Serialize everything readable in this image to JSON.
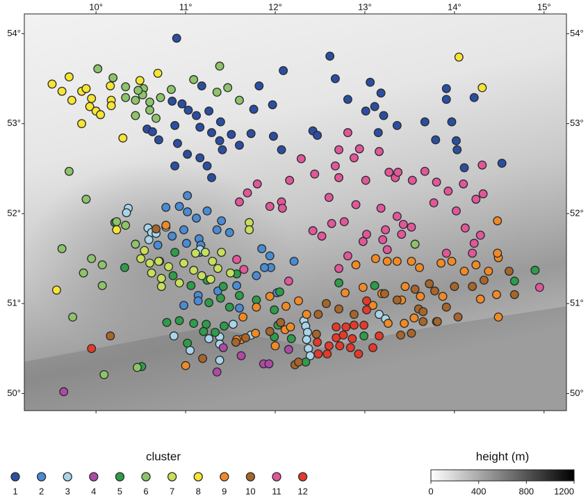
{
  "chart_data": {
    "type": "scatter",
    "xlim": [
      9.2,
      15.25
    ],
    "ylim": [
      49.81,
      54.22
    ],
    "xticks": [
      {
        "value": 10,
        "label": "10°"
      },
      {
        "value": 11,
        "label": "11°"
      },
      {
        "value": 12,
        "label": "12°"
      },
      {
        "value": 13,
        "label": "13°"
      },
      {
        "value": 14,
        "label": "14°"
      },
      {
        "value": 15,
        "label": "15°"
      }
    ],
    "yticks": [
      {
        "value": 50,
        "label": "50°"
      },
      {
        "value": 51,
        "label": "51°"
      },
      {
        "value": 52,
        "label": "52°"
      },
      {
        "value": 53,
        "label": "53°"
      },
      {
        "value": 54,
        "label": "54°"
      }
    ],
    "legend_title": "cluster",
    "series": [
      {
        "name": "1",
        "color": "#2b4ea0",
        "x": [
          10.9,
          12.61,
          12.09,
          12.67,
          13.06,
          11.18,
          11.82,
          13.18,
          13.91,
          13.91,
          14.22,
          12.81,
          10.85,
          10.96,
          11.03,
          11.12,
          11.26,
          11.39,
          11.76,
          11.97,
          13.01,
          13.11,
          13.21,
          13.67,
          13.97,
          13.36,
          10.57,
          10.63,
          10.7,
          10.88,
          11.16,
          11.29,
          11.38,
          11.51,
          11.73,
          11.98,
          12.42,
          12.47,
          13.15,
          13.79,
          14.02,
          14.03,
          10.91,
          11.02,
          11.16,
          11.24,
          11.29,
          11.6,
          12.07,
          14.11,
          14.53,
          10.88,
          11.41
        ],
        "y": [
          53.95,
          53.75,
          53.59,
          53.5,
          53.46,
          53.42,
          53.42,
          53.34,
          53.39,
          53.27,
          53.29,
          53.27,
          53.25,
          53.22,
          53.15,
          53.09,
          53.14,
          53.02,
          53.16,
          53.21,
          53.14,
          53.19,
          53.09,
          53.02,
          53.02,
          52.98,
          52.94,
          52.91,
          52.82,
          52.98,
          52.96,
          52.9,
          52.81,
          52.88,
          52.89,
          52.86,
          52.92,
          52.87,
          52.9,
          52.82,
          52.81,
          52.71,
          52.78,
          52.66,
          52.62,
          52.53,
          52.4,
          52.76,
          52.71,
          52.51,
          52.56,
          52.53,
          52.71
        ]
      },
      {
        "name": "2",
        "color": "#4a8bd3",
        "x": [
          10.78,
          10.93,
          11.02,
          11.02,
          11.12,
          11.24,
          11.4,
          10.98,
          10.85,
          10.69,
          11.01,
          11.15,
          11.17,
          11.35,
          11.49,
          11.85,
          11.94,
          11.95,
          11.88,
          12.21,
          11.79,
          11.14,
          11.14,
          10.98,
          11.36,
          11.57,
          11.6,
          12.02,
          10.71,
          11.16
        ],
        "y": [
          52.07,
          52.08,
          52.2,
          52.02,
          51.95,
          52.03,
          51.92,
          51.82,
          51.75,
          51.65,
          51.67,
          51.72,
          51.65,
          51.82,
          51.79,
          51.61,
          51.53,
          51.4,
          51.4,
          51.47,
          51.31,
          51.09,
          51.03,
          50.98,
          51.14,
          51.2,
          50.95,
          51.12,
          51.47,
          51.57
        ]
      },
      {
        "name": "3",
        "color": "#a8d5ea",
        "x": [
          10.36,
          10.34,
          10.58,
          10.62,
          10.59,
          10.67,
          10.78,
          11.16,
          10.87,
          11.05,
          11.26,
          11.38,
          11.38,
          11.38,
          11.53,
          11.73,
          12.32,
          12.34,
          12.36,
          12.35,
          12.37,
          12.39,
          13.16,
          13.23
        ],
        "y": [
          52.06,
          52.01,
          51.84,
          51.79,
          51.71,
          51.78,
          51.85,
          51.6,
          50.64,
          50.48,
          50.61,
          50.63,
          50.55,
          50.37,
          50.77,
          50.65,
          50.81,
          50.75,
          50.68,
          50.6,
          50.5,
          50.42,
          50.88,
          50.83
        ]
      },
      {
        "name": "4",
        "color": "#ad4aa6",
        "x": [
          9.64,
          11.42,
          11.62,
          11.87,
          11.93,
          11.35,
          12.15
        ],
        "y": [
          50.02,
          50.51,
          50.42,
          50.33,
          50.33,
          50.24,
          50.49
        ]
      },
      {
        "name": "5",
        "color": "#2e9c4a",
        "x": [
          10.21,
          10.32,
          10.86,
          10.88,
          11.06,
          11.24,
          11.42,
          11.57,
          11.39,
          11.26,
          11.49,
          11.6,
          10.79,
          10.93,
          11.09,
          11.23,
          11.33,
          11.43,
          11.02,
          11.2,
          11.79,
          11.99,
          12.03,
          11.99,
          12.18,
          12.05,
          12.71,
          13.11,
          12.99,
          10.51,
          12.34,
          14.9,
          14.67
        ],
        "y": [
          51.9,
          51.4,
          51.31,
          51.57,
          51.2,
          51.26,
          51.19,
          51.33,
          51.06,
          51.01,
          50.96,
          51.09,
          50.79,
          50.81,
          50.78,
          50.77,
          50.68,
          50.75,
          50.56,
          50.69,
          51.04,
          50.93,
          50.76,
          50.63,
          50.61,
          51.13,
          51.23,
          51.2,
          50.64,
          50.3,
          50.35,
          51.37,
          51.25
        ]
      },
      {
        "name": "6",
        "color": "#8cc46a",
        "x": [
          10.02,
          10.19,
          10.33,
          10.53,
          10.52,
          10.47,
          10.33,
          10.44,
          10.6,
          10.72,
          10.84,
          11.09,
          11.38,
          11.35,
          11.47,
          11.6,
          10.44,
          10.67,
          10.6,
          9.7,
          9.89,
          10.23,
          10.33,
          9.62,
          9.86,
          9.95,
          10.07,
          10.07,
          9.74,
          10.09,
          10.46,
          13.56,
          10.44
        ],
        "y": [
          53.61,
          53.51,
          53.41,
          53.39,
          53.32,
          53.37,
          53.29,
          53.26,
          53.24,
          53.29,
          53.38,
          53.49,
          53.64,
          53.35,
          53.4,
          53.26,
          53.09,
          53.06,
          53.15,
          52.47,
          52.16,
          51.91,
          51.87,
          51.61,
          51.34,
          51.5,
          51.43,
          51.2,
          50.85,
          50.21,
          50.29,
          51.66,
          51.66
        ]
      },
      {
        "name": "7",
        "color": "#c6df5c",
        "x": [
          10.54,
          10.5,
          10.7,
          10.62,
          10.73,
          10.81,
          10.73,
          10.93,
          10.98,
          11.09,
          11.18,
          11.11,
          11.22,
          11.3,
          11.36,
          11.28,
          11.4,
          11.5,
          11.71,
          11.71,
          10.6
        ],
        "y": [
          51.59,
          51.5,
          51.47,
          51.34,
          51.28,
          51.41,
          51.19,
          51.23,
          51.45,
          51.37,
          51.31,
          51.56,
          51.57,
          51.47,
          51.39,
          51.27,
          51.57,
          51.34,
          51.9,
          51.82,
          51.45
        ]
      },
      {
        "name": "8",
        "color": "#f6e532",
        "x": [
          9.51,
          9.62,
          9.7,
          9.73,
          9.84,
          9.89,
          9.95,
          9.93,
          10.0,
          10.05,
          10.17,
          10.16,
          10.17,
          9.84,
          10.3,
          10.49,
          10.69,
          10.23,
          9.56,
          14.05,
          14.31
        ],
        "y": [
          53.44,
          53.36,
          53.52,
          53.26,
          53.36,
          53.39,
          53.28,
          53.19,
          53.14,
          53.1,
          53.26,
          53.42,
          53.2,
          53.0,
          52.84,
          53.48,
          53.56,
          51.82,
          51.15,
          53.74,
          53.4
        ]
      },
      {
        "name": "9",
        "color": "#f08a26",
        "x": [
          10.78,
          13.12,
          13.25,
          13.36,
          13.52,
          12.9,
          13.85,
          13.97,
          14.24,
          14.49,
          14.48,
          14.48,
          14.11,
          14.38,
          13.61,
          12.78,
          12.98,
          13.19,
          13.41,
          13.62,
          13.87,
          14.29,
          14.47,
          14.49,
          13.45,
          11.94,
          12.12,
          12.26,
          12.35,
          11.79,
          11.62,
          11.78,
          12.11,
          12.0,
          12.17,
          11.0,
          11.57,
          11.64,
          13.09,
          13.26,
          13.44,
          13.55,
          13.8
        ],
        "y": [
          51.87,
          51.5,
          51.47,
          51.47,
          51.47,
          51.43,
          51.45,
          51.47,
          51.43,
          51.51,
          51.92,
          51.56,
          51.36,
          51.36,
          51.4,
          51.12,
          51.18,
          51.11,
          51.04,
          51.08,
          51.08,
          51.05,
          51.1,
          50.85,
          51.19,
          51.08,
          50.97,
          51.03,
          50.88,
          50.96,
          50.6,
          50.67,
          50.71,
          50.53,
          50.74,
          50.31,
          50.6,
          50.85,
          50.98,
          50.78,
          50.78,
          50.84,
          50.8
        ]
      },
      {
        "name": "10",
        "color": "#a5652b",
        "x": [
          10.67,
          10.16,
          11.19,
          11.56,
          11.67,
          11.94,
          12.06,
          12.22,
          12.26,
          12.46,
          12.57,
          12.71,
          12.48,
          12.88,
          13.36,
          13.6,
          13.65,
          13.65,
          13.81,
          13.91,
          14.04,
          13.72,
          13.78,
          14.0,
          14.2,
          14.33,
          14.61,
          14.67,
          13.4,
          13.52,
          13.22,
          13.56
        ],
        "y": [
          51.83,
          50.64,
          50.39,
          50.57,
          50.62,
          50.69,
          50.79,
          50.32,
          50.35,
          50.66,
          51.0,
          50.94,
          50.88,
          50.88,
          51.04,
          50.94,
          50.91,
          50.8,
          50.8,
          50.96,
          50.85,
          51.22,
          51.14,
          51.19,
          51.19,
          51.26,
          51.36,
          51.1,
          50.65,
          50.67,
          51.11,
          51.16
        ]
      },
      {
        "name": "11",
        "color": "#e0579a",
        "x": [
          12.81,
          12.94,
          12.71,
          12.88,
          13.16,
          12.29,
          12.44,
          12.67,
          12.71,
          12.16,
          13.01,
          13.27,
          13.34,
          13.37,
          13.53,
          13.67,
          13.8,
          13.93,
          14.1,
          14.31,
          14.32,
          14.24,
          13.77,
          14.02,
          11.8,
          11.6,
          11.69,
          11.94,
          12.07,
          12.08,
          12.6,
          12.9,
          13.18,
          13.36,
          12.77,
          12.63,
          12.42,
          12.52,
          13.02,
          12.98,
          13.23,
          13.43,
          13.52,
          13.41,
          13.2,
          14.12,
          14.22,
          14.29,
          14.2,
          13.25,
          12.81,
          12.71,
          11.57,
          11.65,
          12.15,
          13.91,
          14.95
        ],
        "y": [
          52.9,
          52.72,
          52.71,
          52.62,
          52.69,
          52.61,
          52.44,
          52.53,
          52.4,
          52.37,
          52.37,
          52.46,
          52.4,
          52.46,
          52.37,
          52.47,
          52.35,
          52.25,
          52.33,
          52.54,
          52.22,
          52.16,
          52.12,
          52.03,
          52.33,
          52.13,
          52.23,
          52.08,
          52.13,
          52.06,
          52.18,
          52.1,
          52.06,
          51.97,
          51.91,
          51.89,
          51.81,
          51.75,
          51.77,
          51.69,
          51.82,
          51.88,
          51.85,
          51.77,
          51.71,
          51.84,
          51.67,
          51.76,
          51.56,
          51.6,
          51.53,
          51.39,
          51.49,
          51.38,
          51.25,
          51.56,
          51.18
        ]
      },
      {
        "name": "12",
        "color": "#e23a2b",
        "x": [
          9.95,
          12.68,
          12.79,
          12.88,
          12.99,
          12.68,
          12.76,
          12.86,
          12.6,
          12.72,
          12.84,
          12.93,
          12.58,
          12.47,
          12.48,
          13.02,
          13.02,
          13.09,
          13.16
        ],
        "y": [
          50.5,
          50.74,
          50.74,
          50.76,
          50.76,
          50.62,
          50.65,
          50.61,
          50.53,
          50.53,
          50.51,
          50.44,
          50.44,
          50.57,
          50.44,
          51.03,
          50.93,
          50.51,
          50.64
        ]
      }
    ],
    "colorbar": {
      "title": "height (m)",
      "lim": [
        0,
        1200
      ],
      "ticks": [
        0,
        400,
        800,
        1200
      ],
      "colors": [
        "#ffffff",
        "#000000"
      ]
    }
  }
}
